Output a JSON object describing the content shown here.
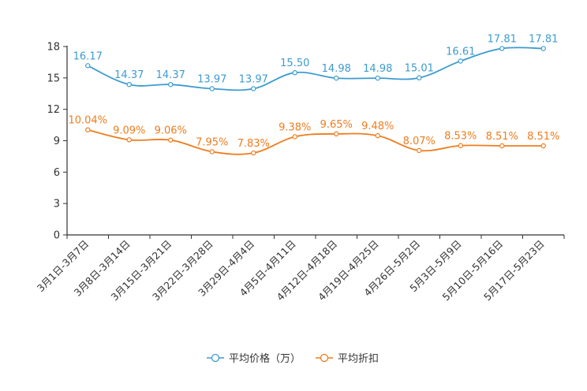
{
  "chart_data": {
    "type": "line",
    "title": "",
    "xlabel": "",
    "ylabel": "",
    "ylim": [
      0,
      18
    ],
    "yticks": [
      0,
      3,
      6,
      9,
      12,
      15,
      18
    ],
    "grid": false,
    "legend_position": "bottom-center",
    "categories": [
      "3月1日-3月7日",
      "3月8日-3月14日",
      "3月15日-3月21日",
      "3月22日-3月28日",
      "3月29日-4月4日",
      "4月5日-4月11日",
      "4月12日-4月18日",
      "4月19日-4月25日",
      "4月26日-5月2日",
      "5月3日-5月9日",
      "5月10日-5月16日",
      "5月17日-5月23日"
    ],
    "series": [
      {
        "name": "平均价格（万）",
        "color": "#3d9bd0",
        "values": [
          16.17,
          14.37,
          14.37,
          13.97,
          13.97,
          15.5,
          14.98,
          14.98,
          15.01,
          16.61,
          17.81,
          17.81
        ],
        "labels": [
          "16.17",
          "14.37",
          "14.37",
          "13.97",
          "13.97",
          "15.50",
          "14.98",
          "14.98",
          "15.01",
          "16.61",
          "17.81",
          "17.81"
        ]
      },
      {
        "name": "平均折扣",
        "color": "#f07c1e",
        "values": [
          10.04,
          9.09,
          9.06,
          7.95,
          7.83,
          9.38,
          9.65,
          9.48,
          8.07,
          8.53,
          8.51,
          8.51
        ],
        "labels": [
          "10.04%",
          "9.09%",
          "9.06%",
          "7.95%",
          "7.83%",
          "9.38%",
          "9.65%",
          "9.48%",
          "8.07%",
          "8.53%",
          "8.51%",
          "8.51%"
        ]
      }
    ]
  }
}
